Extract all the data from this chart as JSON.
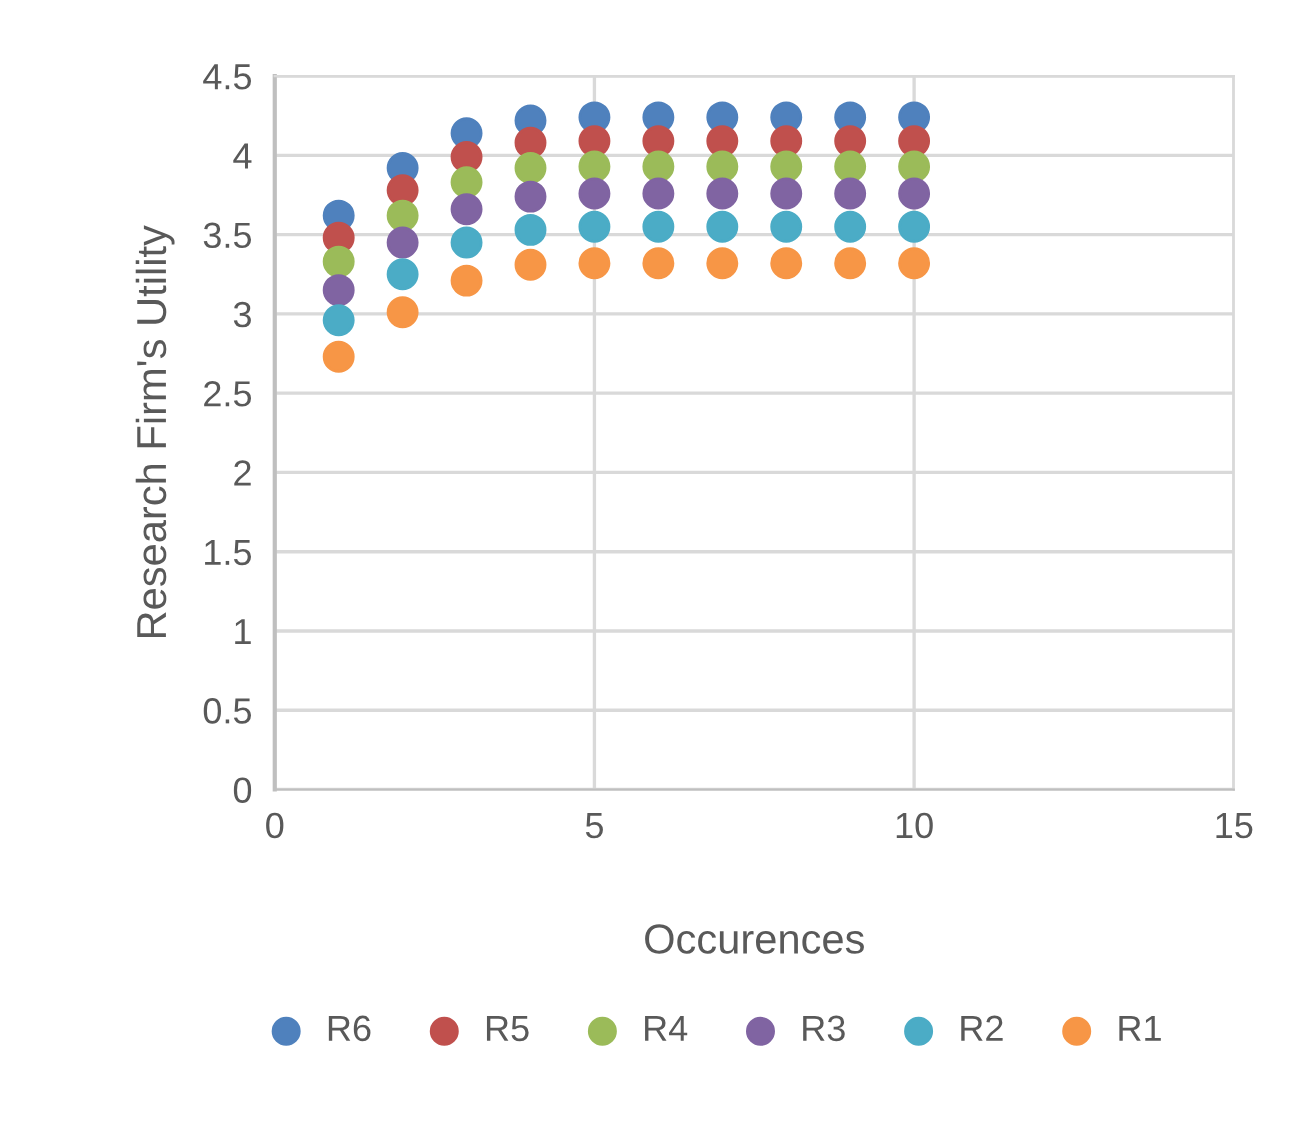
{
  "chart_data": {
    "type": "scatter",
    "xlabel": "Occurences",
    "ylabel": "Research Firm's Utility",
    "x": [
      1,
      2,
      3,
      4,
      5,
      6,
      7,
      8,
      9,
      10
    ],
    "xlim": [
      0,
      15
    ],
    "xticks": [
      0,
      5,
      10,
      15
    ],
    "ylim": [
      0,
      4.5
    ],
    "yticks": [
      0,
      0.5,
      1,
      1.5,
      2,
      2.5,
      3,
      3.5,
      4,
      4.5
    ],
    "grid": true,
    "legend": "bottom",
    "marker": "circle",
    "series": [
      {
        "name": "R6",
        "color": "#4f81bd",
        "values": [
          3.62,
          3.92,
          4.14,
          4.22,
          4.24,
          4.24,
          4.24,
          4.24,
          4.24,
          4.24
        ]
      },
      {
        "name": "R5",
        "color": "#c0504d",
        "values": [
          3.48,
          3.78,
          3.99,
          4.08,
          4.09,
          4.09,
          4.09,
          4.09,
          4.09,
          4.09
        ]
      },
      {
        "name": "R4",
        "color": "#9bbb59",
        "values": [
          3.33,
          3.62,
          3.83,
          3.92,
          3.93,
          3.93,
          3.93,
          3.93,
          3.93,
          3.93
        ]
      },
      {
        "name": "R3",
        "color": "#8064a2",
        "values": [
          3.15,
          3.45,
          3.66,
          3.74,
          3.76,
          3.76,
          3.76,
          3.76,
          3.76,
          3.76
        ]
      },
      {
        "name": "R2",
        "color": "#4bacc6",
        "values": [
          2.96,
          3.25,
          3.45,
          3.53,
          3.55,
          3.55,
          3.55,
          3.55,
          3.55,
          3.55
        ]
      },
      {
        "name": "R1",
        "color": "#f79646",
        "values": [
          2.73,
          3.01,
          3.21,
          3.31,
          3.32,
          3.32,
          3.32,
          3.32,
          3.32,
          3.32
        ]
      }
    ]
  }
}
